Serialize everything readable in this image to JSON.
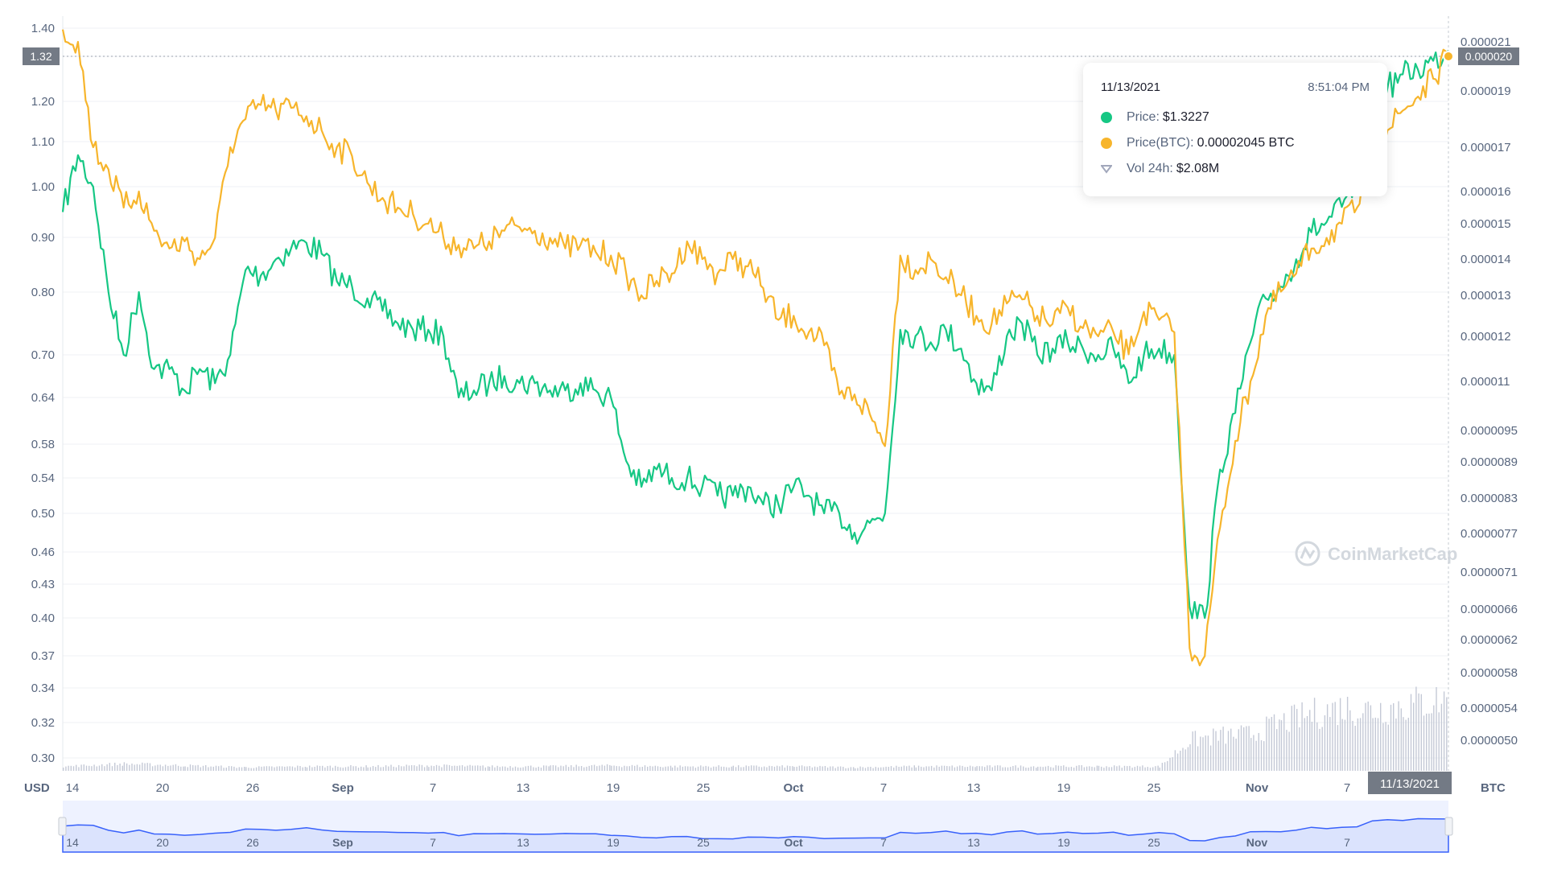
{
  "chart_data": {
    "type": "line",
    "watermark": "CoinMarketCap",
    "y_left_unit": "USD",
    "y_right_unit": "BTC",
    "y_left_ticks": [
      "1.40",
      "1.30",
      "1.20",
      "1.10",
      "1.00",
      "0.90",
      "0.80",
      "0.70",
      "0.64",
      "0.58",
      "0.54",
      "0.50",
      "0.46",
      "0.43",
      "0.40",
      "0.37",
      "0.34",
      "0.32",
      "0.30"
    ],
    "y_right_ticks": [
      "0.000021",
      "0.000019",
      "0.000017",
      "0.000016",
      "0.000015",
      "0.000014",
      "0.000013",
      "0.000012",
      "0.000011",
      "0.0000095",
      "0.0000089",
      "0.0000083",
      "0.0000077",
      "0.0000071",
      "0.0000066",
      "0.0000062",
      "0.0000058",
      "0.0000054",
      "0.0000050"
    ],
    "x_ticks": [
      "14",
      "20",
      "26",
      "Sep",
      "7",
      "13",
      "19",
      "25",
      "Oct",
      "7",
      "13",
      "19",
      "25",
      "Nov",
      "7"
    ],
    "current_price_label": "1.32",
    "current_btc_label": "0.000020",
    "current_date_label": "11/13/2021",
    "x_range": [
      "2021-08-14",
      "2021-11-13"
    ],
    "series": [
      {
        "name": "Price",
        "color": "#16c784",
        "unit": "USD",
        "x": [
          "2021-08-14",
          "2021-08-15",
          "2021-08-16",
          "2021-08-17",
          "2021-08-18",
          "2021-08-19",
          "2021-08-20",
          "2021-08-21",
          "2021-08-22",
          "2021-08-23",
          "2021-08-24",
          "2021-08-25",
          "2021-08-26",
          "2021-08-27",
          "2021-08-28",
          "2021-08-29",
          "2021-08-30",
          "2021-08-31",
          "2021-09-01",
          "2021-09-02",
          "2021-09-03",
          "2021-09-04",
          "2021-09-05",
          "2021-09-06",
          "2021-09-07",
          "2021-09-08",
          "2021-09-09",
          "2021-09-10",
          "2021-09-11",
          "2021-09-12",
          "2021-09-13",
          "2021-09-14",
          "2021-09-15",
          "2021-09-16",
          "2021-09-17",
          "2021-09-18",
          "2021-09-19",
          "2021-09-20",
          "2021-09-21",
          "2021-09-22",
          "2021-09-23",
          "2021-09-24",
          "2021-09-25",
          "2021-09-26",
          "2021-09-27",
          "2021-09-28",
          "2021-09-29",
          "2021-09-30",
          "2021-10-01",
          "2021-10-02",
          "2021-10-03",
          "2021-10-04",
          "2021-10-05",
          "2021-10-06",
          "2021-10-07",
          "2021-10-08",
          "2021-10-09",
          "2021-10-10",
          "2021-10-11",
          "2021-10-12",
          "2021-10-13",
          "2021-10-14",
          "2021-10-15",
          "2021-10-16",
          "2021-10-17",
          "2021-10-18",
          "2021-10-19",
          "2021-10-20",
          "2021-10-21",
          "2021-10-22",
          "2021-10-23",
          "2021-10-24",
          "2021-10-25",
          "2021-10-26",
          "2021-10-27",
          "2021-10-28",
          "2021-10-29",
          "2021-10-30",
          "2021-10-31",
          "2021-11-01",
          "2021-11-02",
          "2021-11-03",
          "2021-11-04",
          "2021-11-05",
          "2021-11-06",
          "2021-11-07",
          "2021-11-08",
          "2021-11-09",
          "2021-11-10",
          "2021-11-11",
          "2021-11-12",
          "2021-11-13"
        ],
        "values": [
          0.95,
          1.07,
          1.0,
          0.8,
          0.7,
          0.8,
          0.68,
          0.68,
          0.65,
          0.68,
          0.66,
          0.7,
          0.84,
          0.83,
          0.86,
          0.88,
          0.89,
          0.87,
          0.82,
          0.81,
          0.79,
          0.77,
          0.75,
          0.74,
          0.74,
          0.73,
          0.64,
          0.65,
          0.66,
          0.67,
          0.66,
          0.66,
          0.65,
          0.65,
          0.66,
          0.65,
          0.64,
          0.56,
          0.53,
          0.55,
          0.54,
          0.54,
          0.53,
          0.52,
          0.52,
          0.53,
          0.51,
          0.51,
          0.53,
          0.52,
          0.5,
          0.5,
          0.48,
          0.49,
          0.5,
          0.74,
          0.73,
          0.72,
          0.74,
          0.71,
          0.66,
          0.65,
          0.73,
          0.75,
          0.7,
          0.71,
          0.72,
          0.71,
          0.7,
          0.71,
          0.66,
          0.7,
          0.71,
          0.7,
          0.41,
          0.4,
          0.55,
          0.62,
          0.72,
          0.79,
          0.81,
          0.86,
          0.91,
          0.93,
          0.96,
          1.0,
          1.18,
          1.23,
          1.26,
          1.27,
          1.29,
          1.32
        ]
      },
      {
        "name": "Price(BTC)",
        "color": "#f7b52c",
        "unit": "BTC",
        "x": [
          "2021-08-14",
          "2021-08-15",
          "2021-08-16",
          "2021-08-17",
          "2021-08-18",
          "2021-08-19",
          "2021-08-20",
          "2021-08-21",
          "2021-08-22",
          "2021-08-23",
          "2021-08-24",
          "2021-08-25",
          "2021-08-26",
          "2021-08-27",
          "2021-08-28",
          "2021-08-29",
          "2021-08-30",
          "2021-08-31",
          "2021-09-01",
          "2021-09-02",
          "2021-09-03",
          "2021-09-04",
          "2021-09-05",
          "2021-09-06",
          "2021-09-07",
          "2021-09-08",
          "2021-09-09",
          "2021-09-10",
          "2021-09-11",
          "2021-09-12",
          "2021-09-13",
          "2021-09-14",
          "2021-09-15",
          "2021-09-16",
          "2021-09-17",
          "2021-09-18",
          "2021-09-19",
          "2021-09-20",
          "2021-09-21",
          "2021-09-22",
          "2021-09-23",
          "2021-09-24",
          "2021-09-25",
          "2021-09-26",
          "2021-09-27",
          "2021-09-28",
          "2021-09-29",
          "2021-09-30",
          "2021-10-01",
          "2021-10-02",
          "2021-10-03",
          "2021-10-04",
          "2021-10-05",
          "2021-10-06",
          "2021-10-07",
          "2021-10-08",
          "2021-10-09",
          "2021-10-10",
          "2021-10-11",
          "2021-10-12",
          "2021-10-13",
          "2021-10-14",
          "2021-10-15",
          "2021-10-16",
          "2021-10-17",
          "2021-10-18",
          "2021-10-19",
          "2021-10-20",
          "2021-10-21",
          "2021-10-22",
          "2021-10-23",
          "2021-10-24",
          "2021-10-25",
          "2021-10-26",
          "2021-10-27",
          "2021-10-28",
          "2021-10-29",
          "2021-10-30",
          "2021-10-31",
          "2021-11-01",
          "2021-11-02",
          "2021-11-03",
          "2021-11-04",
          "2021-11-05",
          "2021-11-06",
          "2021-11-07",
          "2021-11-08",
          "2021-11-09",
          "2021-11-10",
          "2021-11-11",
          "2021-11-12",
          "2021-11-13"
        ],
        "values": [
          2.15e-05,
          2.1e-05,
          1.7e-05,
          1.65e-05,
          1.55e-05,
          1.6e-05,
          1.48e-05,
          1.43e-05,
          1.45e-05,
          1.4e-05,
          1.46e-05,
          1.7e-05,
          1.8e-05,
          1.85e-05,
          1.83e-05,
          1.84e-05,
          1.81e-05,
          1.76e-05,
          1.7e-05,
          1.68e-05,
          1.62e-05,
          1.58e-05,
          1.55e-05,
          1.53e-05,
          1.5e-05,
          1.46e-05,
          1.44e-05,
          1.43e-05,
          1.45e-05,
          1.48e-05,
          1.49e-05,
          1.48e-05,
          1.46e-05,
          1.43e-05,
          1.44e-05,
          1.42e-05,
          1.41e-05,
          1.36e-05,
          1.3e-05,
          1.34e-05,
          1.36e-05,
          1.45e-05,
          1.4e-05,
          1.36e-05,
          1.4e-05,
          1.38e-05,
          1.32e-05,
          1.24e-05,
          1.25e-05,
          1.21e-05,
          1.18e-05,
          1.06e-05,
          1.06e-05,
          1e-05,
          9.2e-06,
          1.41e-05,
          1.37e-05,
          1.4e-05,
          1.35e-05,
          1.3e-05,
          1.25e-05,
          1.23e-05,
          1.28e-05,
          1.29e-05,
          1.25e-05,
          1.23e-05,
          1.27e-05,
          1.22e-05,
          1.2e-05,
          1.21e-05,
          1.16e-05,
          1.26e-05,
          1.24e-05,
          1.21e-05,
          6.1e-06,
          6e-06,
          7.8e-06,
          9.3e-06,
          1.1e-05,
          1.25e-05,
          1.31e-05,
          1.36e-05,
          1.43e-05,
          1.46e-05,
          1.5e-05,
          1.55e-05,
          1.68e-05,
          1.76e-05,
          1.83e-05,
          1.88e-05,
          1.95e-05,
          2.045e-05
        ]
      }
    ],
    "volume": {
      "x": [
        "2021-08-14",
        "2021-08-18",
        "2021-08-22",
        "2021-08-26",
        "2021-08-30",
        "2021-09-03",
        "2021-09-07",
        "2021-09-11",
        "2021-09-15",
        "2021-09-19",
        "2021-09-23",
        "2021-09-27",
        "2021-10-01",
        "2021-10-05",
        "2021-10-09",
        "2021-10-13",
        "2021-10-17",
        "2021-10-21",
        "2021-10-25",
        "2021-10-27",
        "2021-10-29",
        "2021-10-31",
        "2021-11-02",
        "2021-11-04",
        "2021-11-06",
        "2021-11-08",
        "2021-11-10",
        "2021-11-12",
        "2021-11-13"
      ],
      "relative": [
        0.05,
        0.08,
        0.06,
        0.04,
        0.05,
        0.05,
        0.06,
        0.05,
        0.05,
        0.06,
        0.05,
        0.05,
        0.05,
        0.04,
        0.05,
        0.05,
        0.05,
        0.05,
        0.05,
        0.35,
        0.4,
        0.42,
        0.55,
        0.65,
        0.72,
        0.7,
        0.75,
        0.8,
        0.82
      ]
    }
  },
  "tooltip": {
    "date": "11/13/2021",
    "time": "8:51:04 PM",
    "price_label": "Price:",
    "price_value": "$1.3227",
    "btc_label": "Price(BTC):",
    "btc_value": "0.00002045 BTC",
    "vol_label": "Vol 24h:",
    "vol_value": "$2.08M"
  },
  "navigator_ticks": [
    "14",
    "20",
    "26",
    "Sep",
    "7",
    "13",
    "19",
    "25",
    "Oct",
    "7",
    "13",
    "19",
    "25",
    "Nov",
    "7"
  ],
  "colors": {
    "green": "#16c784",
    "orange": "#f7b52c",
    "axis_text": "#58667e",
    "label_bg": "#737a85",
    "navigator": "#3861fb"
  }
}
